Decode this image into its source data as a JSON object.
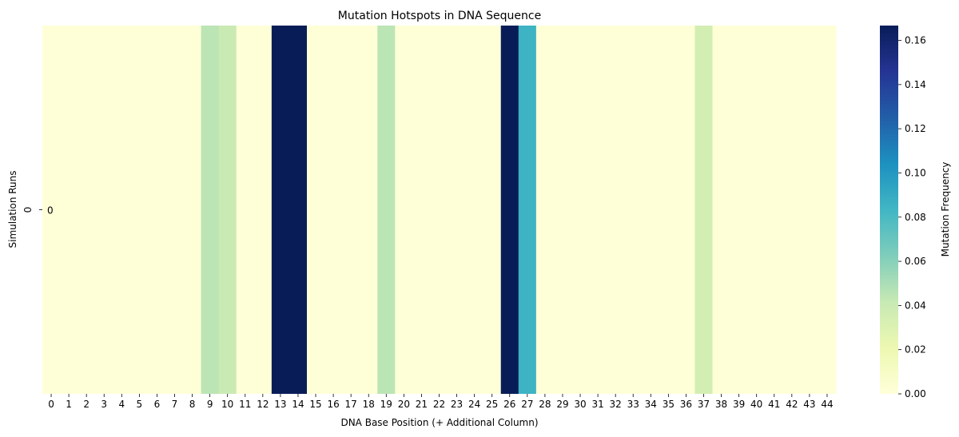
{
  "chart_data": {
    "type": "heatmap",
    "title": "Mutation Hotspots in DNA Sequence",
    "xlabel": "DNA Base Position (+ Additional Column)",
    "ylabel": "Simulation Runs",
    "x_ticks": [
      "0",
      "1",
      "2",
      "3",
      "4",
      "5",
      "6",
      "7",
      "8",
      "9",
      "10",
      "11",
      "12",
      "13",
      "14",
      "15",
      "16",
      "17",
      "18",
      "19",
      "20",
      "21",
      "22",
      "23",
      "24",
      "25",
      "26",
      "27",
      "28",
      "29",
      "30",
      "31",
      "32",
      "33",
      "34",
      "35",
      "36",
      "37",
      "38",
      "39",
      "40",
      "41",
      "42",
      "43",
      "44"
    ],
    "y_ticks": [
      "0"
    ],
    "annotation": "0",
    "colorbar": {
      "label": "Mutation Frequency",
      "range": [
        0.0,
        0.1667
      ],
      "ticks": [
        "0.00",
        "0.02",
        "0.04",
        "0.06",
        "0.08",
        "0.10",
        "0.12",
        "0.14",
        "0.16"
      ]
    },
    "colormap": "YlGnBu",
    "rows": [
      {
        "name": "0",
        "values": [
          0.0012,
          0.0012,
          0.0012,
          0.0012,
          0.0012,
          0.0012,
          0.0012,
          0.0012,
          0.0012,
          0.045,
          0.04,
          0.0012,
          0.0012,
          0.1667,
          0.1667,
          0.0012,
          0.0012,
          0.0012,
          0.0012,
          0.045,
          0.0012,
          0.0012,
          0.0012,
          0.0012,
          0.0012,
          0.0012,
          0.1667,
          0.085,
          0.0012,
          0.0012,
          0.0012,
          0.0012,
          0.0012,
          0.0012,
          0.0012,
          0.0012,
          0.0012,
          0.035,
          0.0012,
          0.0012,
          0.0012,
          0.0012,
          0.0012,
          0.0012,
          0.0012
        ]
      }
    ]
  }
}
